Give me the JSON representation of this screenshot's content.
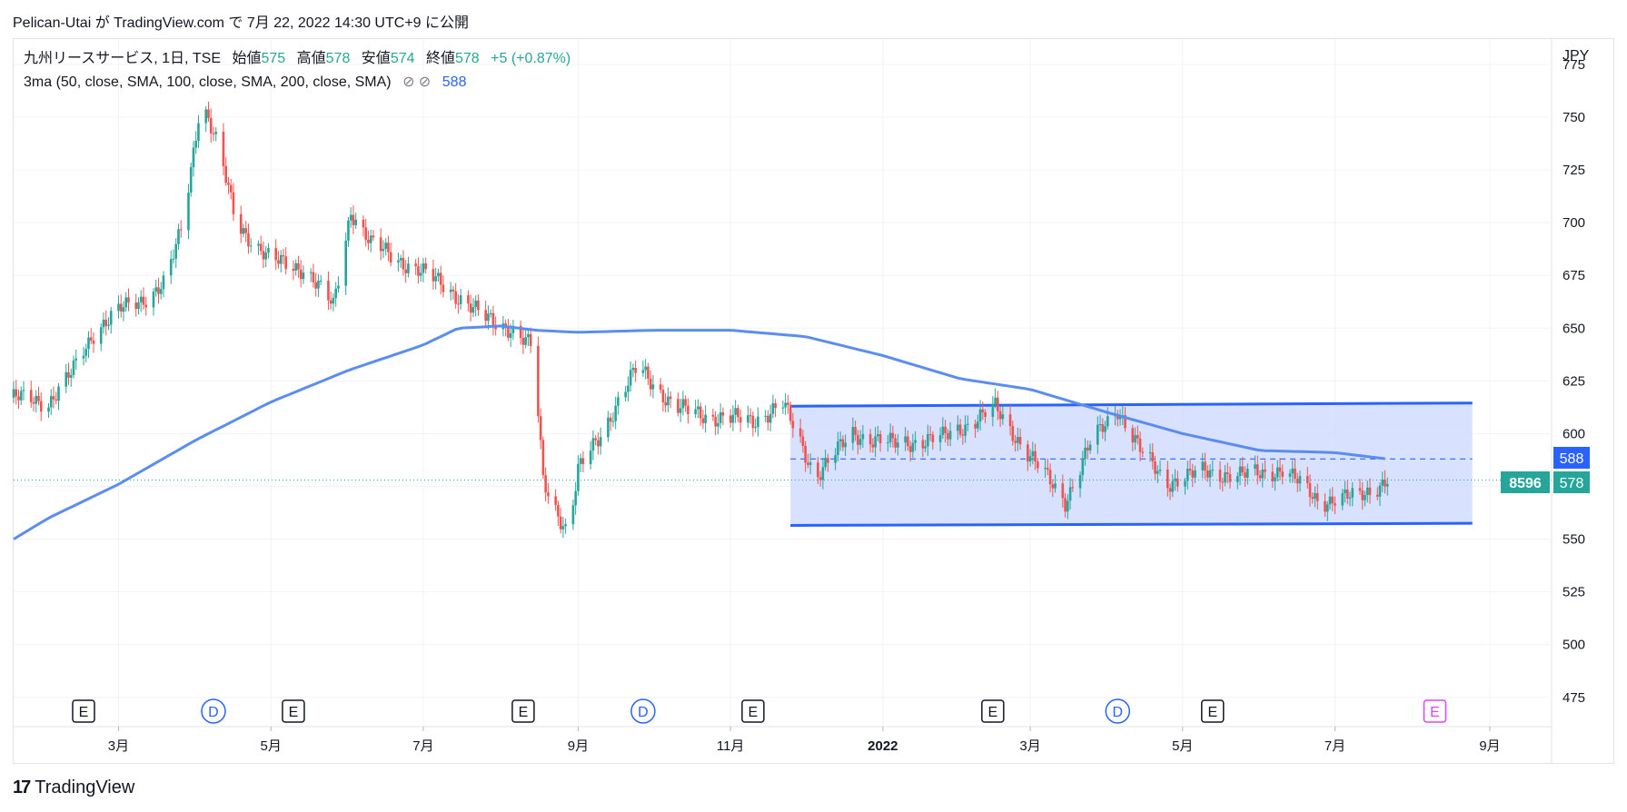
{
  "header": {
    "publish_line": "Pelican-Utai が TradingView.com で 7月 22, 2022 14:30 UTC+9 に公開"
  },
  "legend": {
    "symbol_line": "九州リースサービス, 1日, TSE",
    "open_label": "始値",
    "open_value": "575",
    "high_label": "高値",
    "high_value": "578",
    "low_label": "安値",
    "low_value": "574",
    "close_label": "終値",
    "close_value": "578",
    "change": "+5 (+0.87%)",
    "indicator_line": "3ma (50, close, SMA, 100, close, SMA, 200, close, SMA)",
    "indicator_icons": "⊘ ⊘",
    "indicator_value": "588"
  },
  "price_axis": {
    "currency": "JPY",
    "ticks": [
      "775",
      "750",
      "725",
      "700",
      "675",
      "650",
      "625",
      "600",
      "575",
      "550",
      "525",
      "500",
      "475"
    ],
    "ma_tag": "588",
    "last_tag": "578",
    "volume_tag": "8596"
  },
  "time_axis": {
    "labels": [
      "3月",
      "5月",
      "7月",
      "9月",
      "11月",
      "2022",
      "3月",
      "5月",
      "7月",
      "9月"
    ]
  },
  "events": [
    {
      "letter": "E",
      "kind": "earnings"
    },
    {
      "letter": "D",
      "kind": "dividend"
    },
    {
      "letter": "E",
      "kind": "earnings"
    },
    {
      "letter": "E",
      "kind": "earnings"
    },
    {
      "letter": "D",
      "kind": "dividend"
    },
    {
      "letter": "E",
      "kind": "earnings"
    },
    {
      "letter": "E",
      "kind": "earnings"
    },
    {
      "letter": "D",
      "kind": "dividend"
    },
    {
      "letter": "E",
      "kind": "earnings"
    },
    {
      "letter": "E",
      "kind": "earnings-upcoming"
    }
  ],
  "footer": {
    "brand": "TradingView",
    "logo": "17"
  },
  "colors": {
    "up": "#26a69a",
    "down": "#ef5350",
    "ma": "#5b8def",
    "channel_line": "#2962ff",
    "channel_fill": "#d1dcfd",
    "event_upcoming": "#e040fb",
    "event_dividend": "#2962ff"
  },
  "chart_data": {
    "type": "candlestick",
    "title": "九州リースサービス, 1日, TSE",
    "ylabel": "JPY",
    "ylim": [
      462,
      787
    ],
    "x_range": [
      "2021-01-18",
      "2022-09-25"
    ],
    "x_ticks": [
      "2021-03-01",
      "2021-05-01",
      "2021-07-01",
      "2021-09-01",
      "2021-11-01",
      "2022-01-01",
      "2022-03-01",
      "2022-05-01",
      "2022-07-01",
      "2022-09-01"
    ],
    "price_path": [
      [
        "2021-01-18",
        617
      ],
      [
        "2021-02-01",
        615
      ],
      [
        "2021-02-10",
        628
      ],
      [
        "2021-02-20",
        650
      ],
      [
        "2021-03-01",
        658
      ],
      [
        "2021-03-10",
        663
      ],
      [
        "2021-03-20",
        672
      ],
      [
        "2021-03-27",
        700
      ],
      [
        "2021-04-03",
        760
      ],
      [
        "2021-04-10",
        735
      ],
      [
        "2021-04-17",
        700
      ],
      [
        "2021-05-01",
        682
      ],
      [
        "2021-05-15",
        678
      ],
      [
        "2021-05-26",
        660
      ],
      [
        "2021-06-02",
        706
      ],
      [
        "2021-06-10",
        690
      ],
      [
        "2021-06-25",
        680
      ],
      [
        "2021-07-10",
        670
      ],
      [
        "2021-07-25",
        655
      ],
      [
        "2021-08-05",
        650
      ],
      [
        "2021-08-14",
        640
      ],
      [
        "2021-08-18",
        578
      ],
      [
        "2021-08-28",
        552
      ],
      [
        "2021-09-01",
        582
      ],
      [
        "2021-09-10",
        600
      ],
      [
        "2021-09-25",
        632
      ],
      [
        "2021-10-10",
        612
      ],
      [
        "2021-10-25",
        608
      ],
      [
        "2021-11-10",
        606
      ],
      [
        "2021-11-22",
        614
      ],
      [
        "2021-12-05",
        580
      ],
      [
        "2021-12-20",
        600
      ],
      [
        "2022-01-05",
        595
      ],
      [
        "2022-01-25",
        598
      ],
      [
        "2022-02-15",
        612
      ],
      [
        "2022-03-05",
        583
      ],
      [
        "2022-03-15",
        568
      ],
      [
        "2022-03-25",
        595
      ],
      [
        "2022-04-05",
        612
      ],
      [
        "2022-04-15",
        590
      ],
      [
        "2022-04-25",
        577
      ],
      [
        "2022-05-10",
        582
      ],
      [
        "2022-05-25",
        580
      ],
      [
        "2022-06-10",
        583
      ],
      [
        "2022-06-25",
        568
      ],
      [
        "2022-07-10",
        570
      ],
      [
        "2022-07-22",
        578
      ]
    ],
    "moving_average": [
      [
        "2021-01-18",
        550
      ],
      [
        "2021-02-01",
        560
      ],
      [
        "2021-03-01",
        576
      ],
      [
        "2021-04-01",
        597
      ],
      [
        "2021-05-01",
        615
      ],
      [
        "2021-06-01",
        630
      ],
      [
        "2021-07-01",
        642
      ],
      [
        "2021-07-15",
        650
      ],
      [
        "2021-08-01",
        651
      ],
      [
        "2021-08-15",
        649
      ],
      [
        "2021-09-01",
        648
      ],
      [
        "2021-10-01",
        649
      ],
      [
        "2021-11-01",
        649
      ],
      [
        "2021-12-01",
        646
      ],
      [
        "2022-01-01",
        637
      ],
      [
        "2022-02-01",
        626
      ],
      [
        "2022-03-01",
        621
      ],
      [
        "2022-04-01",
        610
      ],
      [
        "2022-05-01",
        600
      ],
      [
        "2022-06-01",
        592
      ],
      [
        "2022-07-01",
        591
      ],
      [
        "2022-07-22",
        588
      ]
    ],
    "channel": {
      "start": "2021-11-25",
      "end": "2022-08-25",
      "upper": [
        613,
        614.5
      ],
      "lower": [
        556.5,
        557.5
      ],
      "mid": 588
    },
    "last_close": 578,
    "ma_last": 588,
    "volume_last": 8596
  }
}
